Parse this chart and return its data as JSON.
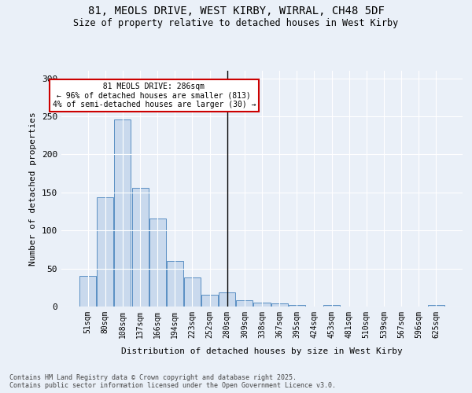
{
  "title_line1": "81, MEOLS DRIVE, WEST KIRBY, WIRRAL, CH48 5DF",
  "title_line2": "Size of property relative to detached houses in West Kirby",
  "xlabel": "Distribution of detached houses by size in West Kirby",
  "ylabel": "Number of detached properties",
  "categories": [
    "51sqm",
    "80sqm",
    "108sqm",
    "137sqm",
    "166sqm",
    "194sqm",
    "223sqm",
    "252sqm",
    "280sqm",
    "309sqm",
    "338sqm",
    "367sqm",
    "395sqm",
    "424sqm",
    "453sqm",
    "481sqm",
    "510sqm",
    "539sqm",
    "567sqm",
    "596sqm",
    "625sqm"
  ],
  "values": [
    40,
    144,
    246,
    156,
    116,
    60,
    38,
    16,
    19,
    8,
    5,
    4,
    2,
    0,
    2,
    0,
    0,
    0,
    0,
    0,
    2
  ],
  "bar_color": "#c9d9ed",
  "bar_edge_color": "#5a8fc3",
  "background_color": "#eaf0f8",
  "vline_x": 8,
  "annotation_line1": "  81 MEOLS DRIVE: 286sqm  ",
  "annotation_line2": "← 96% of detached houses are smaller (813)",
  "annotation_line3": "4% of semi-detached houses are larger (30) →",
  "annotation_box_color": "#ffffff",
  "annotation_box_edge": "#cc0000",
  "ylim": [
    0,
    310
  ],
  "yticks": [
    0,
    50,
    100,
    150,
    200,
    250,
    300
  ],
  "footer_line1": "Contains HM Land Registry data © Crown copyright and database right 2025.",
  "footer_line2": "Contains public sector information licensed under the Open Government Licence v3.0."
}
